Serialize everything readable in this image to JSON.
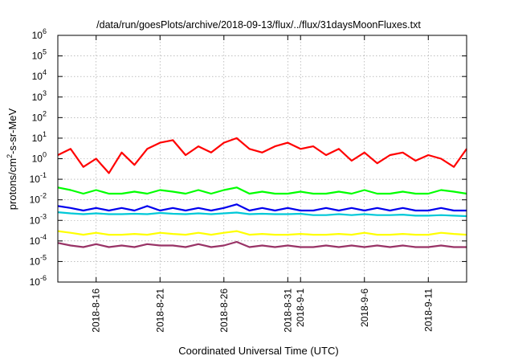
{
  "chart_data": {
    "type": "line",
    "title": "/data/run/goesPlots/archive/2018-09-13/flux/../flux/31daysMoonFluxes.txt",
    "xlabel": "Coordinated Universal Time (UTC)",
    "ylabel_base": "protons/cm",
    "ylabel_sup": "2",
    "ylabel_rest": "-s-sr-MeV",
    "yscale": "log",
    "ylim": [
      1e-06,
      1000000.0
    ],
    "y_tick_labels": [
      {
        "exp": -6,
        "base": "10",
        "sup": "-6"
      },
      {
        "exp": -5,
        "base": "10",
        "sup": "-5"
      },
      {
        "exp": -4,
        "base": "10",
        "sup": "-4"
      },
      {
        "exp": -3,
        "base": "10",
        "sup": "-3"
      },
      {
        "exp": -2,
        "base": "10",
        "sup": "-2"
      },
      {
        "exp": -1,
        "base": "10",
        "sup": "-1"
      },
      {
        "exp": 0,
        "base": "10",
        "sup": "0"
      },
      {
        "exp": 1,
        "base": "10",
        "sup": "1"
      },
      {
        "exp": 2,
        "base": "10",
        "sup": "2"
      },
      {
        "exp": 3,
        "base": "10",
        "sup": "3"
      },
      {
        "exp": 4,
        "base": "10",
        "sup": "4"
      },
      {
        "exp": 5,
        "base": "10",
        "sup": "5"
      },
      {
        "exp": 6,
        "base": "10",
        "sup": "6"
      }
    ],
    "xlim": [
      "2018-08-13",
      "2018-09-14"
    ],
    "x_ticks": [
      "2018-08-16",
      "2018-08-21",
      "2018-08-26",
      "2018-08-31",
      "2018-09-01",
      "2018-09-06",
      "2018-09-11"
    ],
    "x_tick_labels": [
      "2018-8-16",
      "2018-8-21",
      "2018-8-26",
      "2018-8-31",
      "2018-9-1",
      "2018-9-6",
      "2018-9-11"
    ],
    "grid": true,
    "x": [
      "2018-08-13",
      "2018-08-14",
      "2018-08-15",
      "2018-08-16",
      "2018-08-17",
      "2018-08-18",
      "2018-08-19",
      "2018-08-20",
      "2018-08-21",
      "2018-08-22",
      "2018-08-23",
      "2018-08-24",
      "2018-08-25",
      "2018-08-26",
      "2018-08-27",
      "2018-08-28",
      "2018-08-29",
      "2018-08-30",
      "2018-08-31",
      "2018-09-01",
      "2018-09-02",
      "2018-09-03",
      "2018-09-04",
      "2018-09-05",
      "2018-09-06",
      "2018-09-07",
      "2018-09-08",
      "2018-09-09",
      "2018-09-10",
      "2018-09-11",
      "2018-09-12",
      "2018-09-13",
      "2018-09-14"
    ],
    "series": [
      {
        "color": "#ff0000",
        "values": [
          1.5,
          3,
          0.4,
          1,
          0.2,
          2,
          0.5,
          3,
          6,
          8,
          1.5,
          4,
          2,
          6,
          10,
          3,
          2,
          4,
          6,
          3,
          4,
          1.5,
          3,
          0.8,
          2,
          0.6,
          1.5,
          2,
          0.8,
          1.5,
          1,
          0.4,
          3
        ]
      },
      {
        "color": "#00ff00",
        "values": [
          0.04,
          0.03,
          0.02,
          0.03,
          0.02,
          0.02,
          0.025,
          0.02,
          0.03,
          0.025,
          0.02,
          0.03,
          0.02,
          0.03,
          0.04,
          0.02,
          0.025,
          0.02,
          0.02,
          0.025,
          0.02,
          0.02,
          0.025,
          0.02,
          0.03,
          0.02,
          0.02,
          0.025,
          0.02,
          0.02,
          0.03,
          0.025,
          0.02
        ]
      },
      {
        "color": "#00c8d8",
        "values": [
          0.0025,
          0.0022,
          0.002,
          0.0022,
          0.002,
          0.002,
          0.0021,
          0.002,
          0.0023,
          0.0021,
          0.002,
          0.0022,
          0.002,
          0.0022,
          0.0024,
          0.002,
          0.0021,
          0.002,
          0.002,
          0.0021,
          0.0018,
          0.0018,
          0.002,
          0.0018,
          0.002,
          0.0018,
          0.0018,
          0.0019,
          0.0017,
          0.0017,
          0.0018,
          0.0017,
          0.0016
        ]
      },
      {
        "color": "#0000ee",
        "values": [
          0.005,
          0.004,
          0.003,
          0.004,
          0.003,
          0.004,
          0.003,
          0.005,
          0.003,
          0.004,
          0.003,
          0.004,
          0.003,
          0.004,
          0.006,
          0.003,
          0.004,
          0.003,
          0.004,
          0.003,
          0.003,
          0.004,
          0.003,
          0.004,
          0.003,
          0.004,
          0.003,
          0.004,
          0.003,
          0.003,
          0.004,
          0.003,
          0.003
        ]
      },
      {
        "color": "#ffff00",
        "values": [
          0.0003,
          0.00025,
          0.0002,
          0.00025,
          0.0002,
          0.0002,
          0.00022,
          0.0002,
          0.00025,
          0.00022,
          0.0002,
          0.00025,
          0.0002,
          0.00025,
          0.0003,
          0.0002,
          0.00022,
          0.0002,
          0.0002,
          0.00022,
          0.0002,
          0.0002,
          0.00022,
          0.0002,
          0.00025,
          0.0002,
          0.0002,
          0.00022,
          0.0002,
          0.0002,
          0.00025,
          0.00022,
          0.0002
        ]
      },
      {
        "color": "#993366",
        "values": [
          8e-05,
          6e-05,
          5e-05,
          7e-05,
          5e-05,
          6e-05,
          5e-05,
          7e-05,
          6e-05,
          6e-05,
          5e-05,
          7e-05,
          5e-05,
          6e-05,
          9e-05,
          5e-05,
          6e-05,
          5e-05,
          6e-05,
          5e-05,
          5e-05,
          6e-05,
          5e-05,
          6e-05,
          5e-05,
          6e-05,
          5e-05,
          6e-05,
          5e-05,
          5e-05,
          6e-05,
          5e-05,
          5e-05
        ]
      }
    ]
  }
}
